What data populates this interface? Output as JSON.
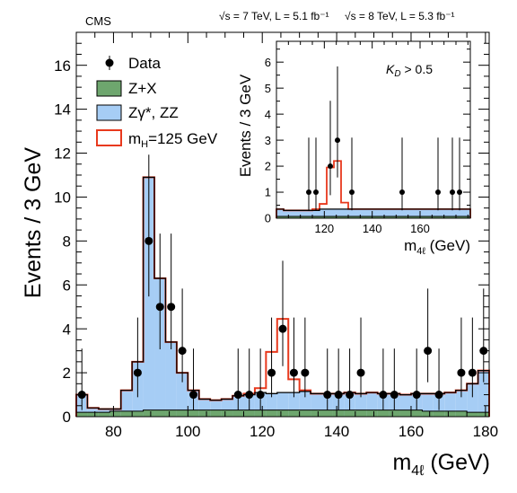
{
  "header": {
    "experiment": "CMS",
    "energy_lumi_7": "√s = 7 TeV, L = 5.1 fb⁻¹",
    "energy_lumi_8": "√s = 8 TeV, L = 5.3 fb⁻¹"
  },
  "colors": {
    "zx_fill": "#6ea66e",
    "zz_fill": "#a6cdf5",
    "signal_line": "#e8391d",
    "data": "#000000",
    "axis": "#000000"
  },
  "chart_data": [
    {
      "id": "main",
      "type": "bar",
      "xlabel": "m4ℓ (GeV)",
      "ylabel": "Events / 3 GeV",
      "xlim": [
        70,
        181
      ],
      "ylim": [
        0,
        17.5
      ],
      "bin_width": 3,
      "bin_edges": [
        70,
        73,
        76,
        79,
        82,
        85,
        88,
        91,
        94,
        97,
        100,
        103,
        106,
        109,
        112,
        115,
        118,
        121,
        124,
        127,
        130,
        133,
        136,
        139,
        142,
        145,
        148,
        151,
        154,
        157,
        160,
        163,
        166,
        169,
        172,
        175,
        178,
        181
      ],
      "xticks": [
        80,
        100,
        120,
        140,
        160,
        180
      ],
      "yticks": [
        0,
        2,
        4,
        6,
        8,
        10,
        12,
        14,
        16
      ],
      "grid": false,
      "legend_position": "top-left",
      "legend": [
        {
          "key": "data",
          "label": "Data"
        },
        {
          "key": "zx",
          "label": "Z+X"
        },
        {
          "key": "zz",
          "label": "Zγ*, ZZ"
        },
        {
          "key": "signal",
          "label": "m_H=125 GeV"
        }
      ],
      "series": [
        {
          "key": "zx",
          "name": "Z+X",
          "style": "filled",
          "values": [
            0.2,
            0.2,
            0.2,
            0.25,
            0.25,
            0.25,
            0.3,
            0.3,
            0.3,
            0.3,
            0.3,
            0.3,
            0.3,
            0.3,
            0.3,
            0.3,
            0.3,
            0.3,
            0.3,
            0.3,
            0.3,
            0.3,
            0.3,
            0.3,
            0.3,
            0.3,
            0.3,
            0.3,
            0.3,
            0.3,
            0.3,
            0.25,
            0.25,
            0.25,
            0.25,
            0.2,
            0.2
          ]
        },
        {
          "key": "zz",
          "name": "Zγ*, ZZ",
          "style": "filled",
          "values": [
            1.0,
            0.4,
            0.35,
            0.35,
            1.2,
            2.5,
            10.9,
            6.3,
            3.4,
            2.0,
            1.2,
            0.8,
            0.75,
            0.8,
            0.95,
            1.0,
            1.1,
            1.05,
            1.1,
            1.1,
            1.15,
            1.05,
            1.05,
            1.05,
            1.1,
            1.05,
            1.1,
            1.05,
            1.05,
            1.0,
            1.05,
            1.05,
            1.05,
            1.1,
            1.2,
            1.5,
            2.1
          ]
        },
        {
          "key": "signal",
          "name": "m_H=125 GeV",
          "style": "step",
          "values": [
            1.0,
            0.4,
            0.35,
            0.35,
            1.2,
            2.5,
            10.9,
            6.3,
            3.4,
            2.0,
            1.2,
            0.8,
            0.75,
            0.8,
            0.95,
            1.05,
            1.3,
            2.95,
            4.45,
            1.7,
            1.2,
            1.05,
            1.05,
            1.05,
            1.1,
            1.05,
            1.1,
            1.05,
            1.05,
            1.0,
            1.05,
            1.05,
            1.05,
            1.1,
            1.2,
            1.5,
            2.1
          ]
        },
        {
          "key": "data",
          "name": "Data",
          "style": "points",
          "points": [
            {
              "x": 71.5,
              "y": 1
            },
            {
              "x": 86.5,
              "y": 2
            },
            {
              "x": 89.5,
              "y": 8
            },
            {
              "x": 92.5,
              "y": 5
            },
            {
              "x": 95.5,
              "y": 5
            },
            {
              "x": 98.5,
              "y": 3
            },
            {
              "x": 101.5,
              "y": 1
            },
            {
              "x": 113.5,
              "y": 1
            },
            {
              "x": 116.5,
              "y": 1
            },
            {
              "x": 119.5,
              "y": 1
            },
            {
              "x": 122.5,
              "y": 2
            },
            {
              "x": 125.5,
              "y": 4
            },
            {
              "x": 128.5,
              "y": 2
            },
            {
              "x": 131.5,
              "y": 2
            },
            {
              "x": 137.5,
              "y": 1
            },
            {
              "x": 140.5,
              "y": 1
            },
            {
              "x": 143.5,
              "y": 1
            },
            {
              "x": 146.5,
              "y": 2
            },
            {
              "x": 152.5,
              "y": 1
            },
            {
              "x": 155.5,
              "y": 1
            },
            {
              "x": 161.5,
              "y": 1
            },
            {
              "x": 164.5,
              "y": 3
            },
            {
              "x": 167.5,
              "y": 1
            },
            {
              "x": 173.5,
              "y": 2
            },
            {
              "x": 176.5,
              "y": 2
            },
            {
              "x": 179.5,
              "y": 3
            }
          ]
        }
      ]
    },
    {
      "id": "inset",
      "type": "bar",
      "xlabel": "m4ℓ (GeV)",
      "ylabel": "Events / 3 GeV",
      "annotation": "K_D > 0.5",
      "xlim": [
        100,
        181
      ],
      "ylim": [
        0,
        6.8
      ],
      "bin_width": 3,
      "bin_edges": [
        100,
        103,
        106,
        109,
        112,
        115,
        118,
        121,
        124,
        127,
        130,
        133,
        136,
        139,
        142,
        145,
        148,
        151,
        154,
        157,
        160,
        163,
        166,
        169,
        172,
        175,
        178,
        181
      ],
      "xticks": [
        120,
        140,
        160
      ],
      "yticks": [
        0,
        1,
        2,
        3,
        4,
        5,
        6
      ],
      "grid": false,
      "series": [
        {
          "key": "zx",
          "name": "Z+X",
          "style": "filled",
          "values": [
            0.07,
            0.07,
            0.07,
            0.07,
            0.07,
            0.07,
            0.07,
            0.07,
            0.07,
            0.07,
            0.07,
            0.07,
            0.07,
            0.07,
            0.07,
            0.07,
            0.07,
            0.07,
            0.07,
            0.07,
            0.07,
            0.07,
            0.07,
            0.07,
            0.07,
            0.07,
            0.07
          ]
        },
        {
          "key": "zz",
          "name": "Zγ*, ZZ",
          "style": "filled",
          "values": [
            0.35,
            0.3,
            0.3,
            0.3,
            0.3,
            0.3,
            0.35,
            0.35,
            0.35,
            0.35,
            0.35,
            0.35,
            0.35,
            0.35,
            0.35,
            0.35,
            0.35,
            0.35,
            0.35,
            0.35,
            0.35,
            0.35,
            0.35,
            0.35,
            0.35,
            0.35,
            0.35
          ]
        },
        {
          "key": "signal",
          "name": "m_H=125 GeV",
          "style": "step",
          "values": [
            0.35,
            0.3,
            0.3,
            0.3,
            0.3,
            0.35,
            0.55,
            1.95,
            2.2,
            0.6,
            0.35,
            0.35,
            0.35,
            0.35,
            0.35,
            0.35,
            0.35,
            0.35,
            0.35,
            0.35,
            0.35,
            0.35,
            0.35,
            0.35,
            0.35,
            0.35,
            0.35
          ]
        },
        {
          "key": "data",
          "name": "Data",
          "style": "points",
          "points": [
            {
              "x": 113.5,
              "y": 1
            },
            {
              "x": 116.5,
              "y": 1
            },
            {
              "x": 122.5,
              "y": 2
            },
            {
              "x": 125.5,
              "y": 3
            },
            {
              "x": 131.5,
              "y": 1
            },
            {
              "x": 152.5,
              "y": 1
            },
            {
              "x": 167.5,
              "y": 1
            },
            {
              "x": 173.5,
              "y": 1
            },
            {
              "x": 176.5,
              "y": 1
            }
          ]
        }
      ]
    }
  ]
}
